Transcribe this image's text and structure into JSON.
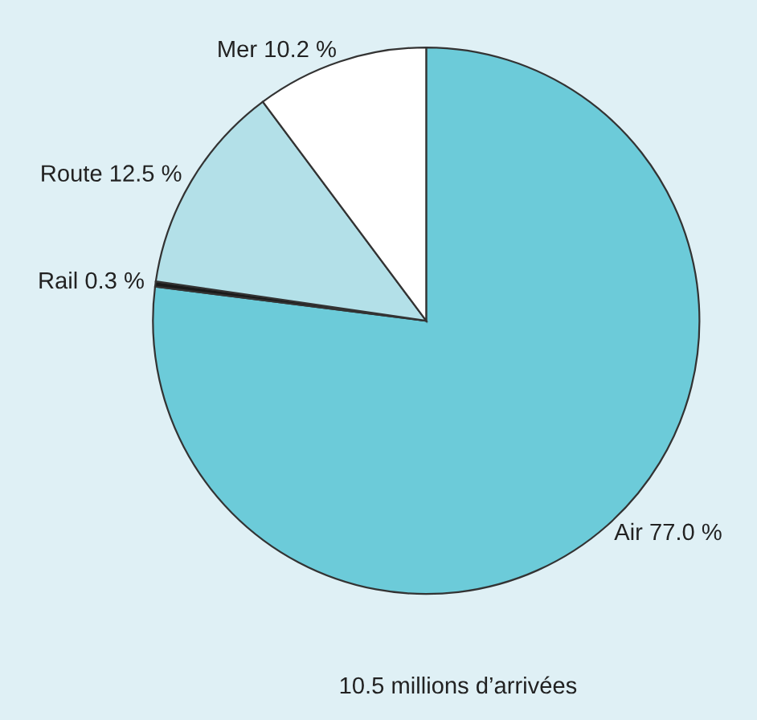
{
  "chart_data": {
    "type": "pie",
    "categories": [
      "Air",
      "Rail",
      "Route",
      "Mer"
    ],
    "values": [
      77.0,
      0.3,
      12.5,
      10.2
    ],
    "colors": [
      "#6ccbd9",
      "#1a1a1a",
      "#b3e0e8",
      "#ffffff"
    ],
    "value_labels": [
      "77.0 %",
      "0.3 %",
      "12.5 %",
      "10.2 %"
    ],
    "annotations": [
      "10.5 millions d’arrivées"
    ]
  }
}
